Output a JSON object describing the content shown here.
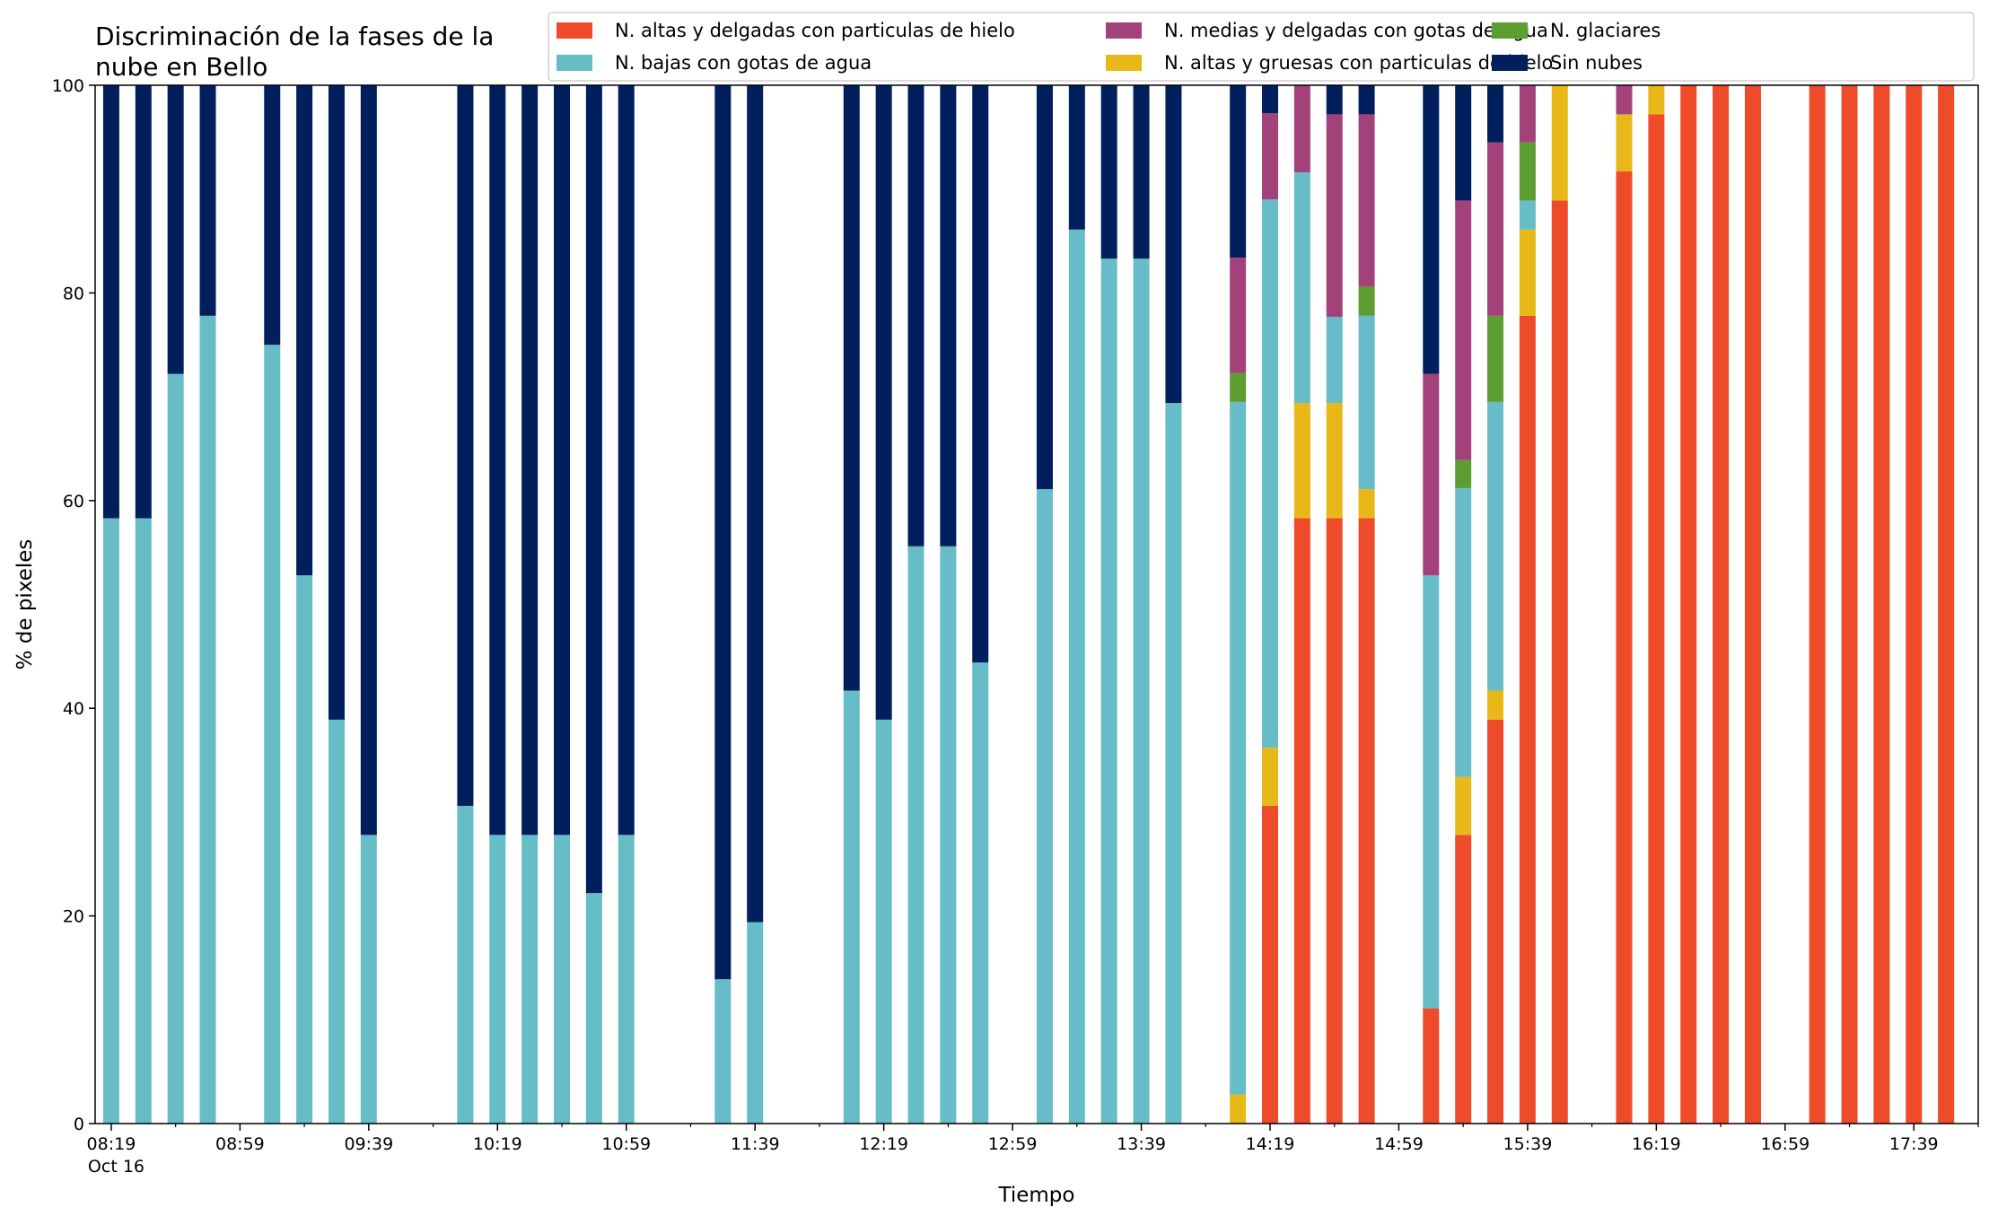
{
  "chart_data": {
    "type": "bar",
    "stacked": true,
    "title_lines": [
      "Discriminación de la fases de la",
      "nube en Bello"
    ],
    "xlabel": "Tiempo",
    "ylabel": "% de pixeles",
    "ylim": [
      0,
      100
    ],
    "yticks": [
      "0",
      "20",
      "40",
      "60",
      "80",
      "100"
    ],
    "xlim_minutes": [
      "08:14",
      "17:59"
    ],
    "major_ticks": [
      {
        "time": "08:19",
        "label": "08:19",
        "sublabel": "Oct 16"
      },
      {
        "time": "08:59",
        "label": "08:59"
      },
      {
        "time": "09:39",
        "label": "09:39"
      },
      {
        "time": "10:19",
        "label": "10:19"
      },
      {
        "time": "10:59",
        "label": "10:59"
      },
      {
        "time": "11:39",
        "label": "11:39"
      },
      {
        "time": "12:19",
        "label": "12:19"
      },
      {
        "time": "12:59",
        "label": "12:59"
      },
      {
        "time": "13:39",
        "label": "13:39"
      },
      {
        "time": "14:19",
        "label": "14:19"
      },
      {
        "time": "14:59",
        "label": "14:59"
      },
      {
        "time": "15:39",
        "label": "15:39"
      },
      {
        "time": "16:19",
        "label": "16:19"
      },
      {
        "time": "16:59",
        "label": "16:59"
      },
      {
        "time": "17:39",
        "label": "17:39"
      }
    ],
    "minor_ticks": [
      "08:39",
      "09:19",
      "09:59",
      "10:39",
      "11:19",
      "11:59",
      "12:39",
      "13:19",
      "13:59",
      "14:39",
      "15:19",
      "15:59",
      "16:39",
      "17:19",
      "17:59"
    ],
    "legend_placement": "top-right",
    "series": [
      {
        "name": "N. altas y delgadas con particulas de hielo",
        "color": "#ee4b2b"
      },
      {
        "name": "N. altas y gruesas con particulas de hielo",
        "color": "#e8b818"
      },
      {
        "name": "N. bajas con gotas de agua",
        "color": "#66bdc8"
      },
      {
        "name": "N. glaciares",
        "color": "#5c9e31"
      },
      {
        "name": "N. medias y delgadas con gotas de agua",
        "color": "#a3427a"
      },
      {
        "name": "Sin nubes",
        "color": "#001f5c"
      }
    ],
    "legend_order": [
      0,
      2,
      4,
      1,
      3,
      5
    ],
    "bars": [
      {
        "time": "08:19",
        "values": [
          0,
          0,
          58.3,
          0,
          0,
          41.7
        ]
      },
      {
        "time": "08:29",
        "values": [
          0,
          0,
          58.3,
          0,
          0,
          41.7
        ]
      },
      {
        "time": "08:39",
        "values": [
          0,
          0,
          72.2,
          0,
          0,
          27.8
        ]
      },
      {
        "time": "08:49",
        "values": [
          0,
          0,
          77.8,
          0,
          0,
          22.2
        ]
      },
      {
        "time": "09:09",
        "values": [
          0,
          0,
          75.0,
          0,
          0,
          25.0
        ]
      },
      {
        "time": "09:19",
        "values": [
          0,
          0,
          52.8,
          0,
          0,
          47.2
        ]
      },
      {
        "time": "09:29",
        "values": [
          0,
          0,
          38.9,
          0,
          0,
          61.1
        ]
      },
      {
        "time": "09:39",
        "values": [
          0,
          0,
          27.8,
          0,
          0,
          72.2
        ]
      },
      {
        "time": "10:09",
        "values": [
          0,
          0,
          30.6,
          0,
          0,
          69.4
        ]
      },
      {
        "time": "10:19",
        "values": [
          0,
          0,
          27.8,
          0,
          0,
          72.2
        ]
      },
      {
        "time": "10:29",
        "values": [
          0,
          0,
          27.8,
          0,
          0,
          72.2
        ]
      },
      {
        "time": "10:39",
        "values": [
          0,
          0,
          27.8,
          0,
          0,
          72.2
        ]
      },
      {
        "time": "10:49",
        "values": [
          0,
          0,
          22.2,
          0,
          0,
          77.8
        ]
      },
      {
        "time": "10:59",
        "values": [
          0,
          0,
          27.8,
          0,
          0,
          72.2
        ]
      },
      {
        "time": "11:29",
        "values": [
          0,
          0,
          13.9,
          0,
          0,
          86.1
        ]
      },
      {
        "time": "11:39",
        "values": [
          0,
          0,
          19.4,
          0,
          0,
          80.6
        ]
      },
      {
        "time": "12:09",
        "values": [
          0,
          0,
          41.7,
          0,
          0,
          58.3
        ]
      },
      {
        "time": "12:19",
        "values": [
          0,
          0,
          38.9,
          0,
          0,
          61.1
        ]
      },
      {
        "time": "12:29",
        "values": [
          0,
          0,
          55.6,
          0,
          0,
          44.4
        ]
      },
      {
        "time": "12:39",
        "values": [
          0,
          0,
          55.6,
          0,
          0,
          44.4
        ]
      },
      {
        "time": "12:49",
        "values": [
          0,
          0,
          44.4,
          0,
          0,
          55.6
        ]
      },
      {
        "time": "13:09",
        "values": [
          0,
          0,
          61.1,
          0,
          0,
          38.9
        ]
      },
      {
        "time": "13:19",
        "values": [
          0,
          0,
          86.1,
          0,
          0,
          13.9
        ]
      },
      {
        "time": "13:29",
        "values": [
          0,
          0,
          83.3,
          0,
          0,
          16.7
        ]
      },
      {
        "time": "13:39",
        "values": [
          0,
          0,
          83.3,
          0,
          0,
          16.7
        ]
      },
      {
        "time": "13:49",
        "values": [
          0,
          0,
          69.4,
          0,
          0,
          30.6
        ]
      },
      {
        "time": "14:09",
        "values": [
          0,
          2.8,
          66.7,
          2.8,
          11.1,
          16.6
        ]
      },
      {
        "time": "14:19",
        "values": [
          30.6,
          5.6,
          52.8,
          0,
          8.3,
          2.7
        ]
      },
      {
        "time": "14:29",
        "values": [
          58.3,
          11.1,
          22.2,
          0,
          8.4,
          0
        ]
      },
      {
        "time": "14:39",
        "values": [
          58.3,
          11.1,
          8.3,
          0,
          19.5,
          2.8
        ]
      },
      {
        "time": "14:49",
        "values": [
          58.3,
          2.8,
          16.7,
          2.8,
          16.6,
          2.8
        ]
      },
      {
        "time": "15:09",
        "values": [
          11.1,
          0,
          41.7,
          0,
          19.4,
          27.8
        ]
      },
      {
        "time": "15:19",
        "values": [
          27.8,
          5.6,
          27.8,
          2.7,
          25.0,
          11.1
        ]
      },
      {
        "time": "15:29",
        "values": [
          38.9,
          2.8,
          27.8,
          8.3,
          16.7,
          5.5
        ]
      },
      {
        "time": "15:39",
        "values": [
          77.8,
          8.3,
          2.8,
          5.6,
          5.5,
          0
        ]
      },
      {
        "time": "15:49",
        "values": [
          88.9,
          11.1,
          0,
          0,
          0,
          0
        ]
      },
      {
        "time": "16:09",
        "values": [
          91.7,
          5.5,
          0,
          0,
          2.8,
          0
        ]
      },
      {
        "time": "16:19",
        "values": [
          97.2,
          2.8,
          0,
          0,
          0,
          0
        ]
      },
      {
        "time": "16:29",
        "values": [
          100,
          0,
          0,
          0,
          0,
          0
        ]
      },
      {
        "time": "16:39",
        "values": [
          100,
          0,
          0,
          0,
          0,
          0
        ]
      },
      {
        "time": "16:49",
        "values": [
          100,
          0,
          0,
          0,
          0,
          0
        ]
      },
      {
        "time": "17:09",
        "values": [
          100,
          0,
          0,
          0,
          0,
          0
        ]
      },
      {
        "time": "17:19",
        "values": [
          100,
          0,
          0,
          0,
          0,
          0
        ]
      },
      {
        "time": "17:29",
        "values": [
          100,
          0,
          0,
          0,
          0,
          0
        ]
      },
      {
        "time": "17:39",
        "values": [
          100,
          0,
          0,
          0,
          0,
          0
        ]
      },
      {
        "time": "17:49",
        "values": [
          100,
          0,
          0,
          0,
          0,
          0
        ]
      }
    ]
  }
}
